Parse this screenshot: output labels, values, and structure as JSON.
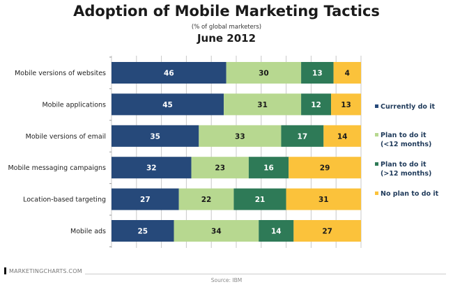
{
  "chart_data": {
    "type": "bar",
    "orientation": "horizontal",
    "stacked": true,
    "title": "Adoption of Mobile Marketing Tactics",
    "subtitle": "(% of global marketers)",
    "date": "June 2012",
    "xlabel": "",
    "ylabel": "",
    "xlim": [
      0,
      100
    ],
    "grid": true,
    "legend_position": "right",
    "categories": [
      "Mobile versions of websites",
      "Mobile applications",
      "Mobile versions of email",
      "Mobile messaging campaigns",
      "Location-based targeting",
      "Mobile ads"
    ],
    "series": [
      {
        "name": "Currently do it",
        "color": "#26497a",
        "label_color": "#ffffff",
        "values": [
          46,
          45,
          35,
          32,
          27,
          25
        ]
      },
      {
        "name": "Plan to do it (<12 months)",
        "legend_lines": [
          "Plan to do it",
          "(<12 months)"
        ],
        "color": "#b7d890",
        "label_color": "#1a1a1a",
        "values": [
          30,
          31,
          33,
          23,
          22,
          34
        ]
      },
      {
        "name": "Plan to do it (>12 months)",
        "legend_lines": [
          "Plan to do it",
          "(>12 months)"
        ],
        "color": "#2e7a57",
        "label_color": "#ffffff",
        "values": [
          13,
          12,
          17,
          16,
          21,
          14
        ]
      },
      {
        "name": "No plan to do it",
        "color": "#fbc23b",
        "label_color": "#1a1a1a",
        "values": [
          4,
          13,
          14,
          29,
          31,
          27
        ]
      }
    ]
  },
  "footer": {
    "brand": "MARKETINGCHARTS.COM",
    "source": "Source: IBM"
  }
}
